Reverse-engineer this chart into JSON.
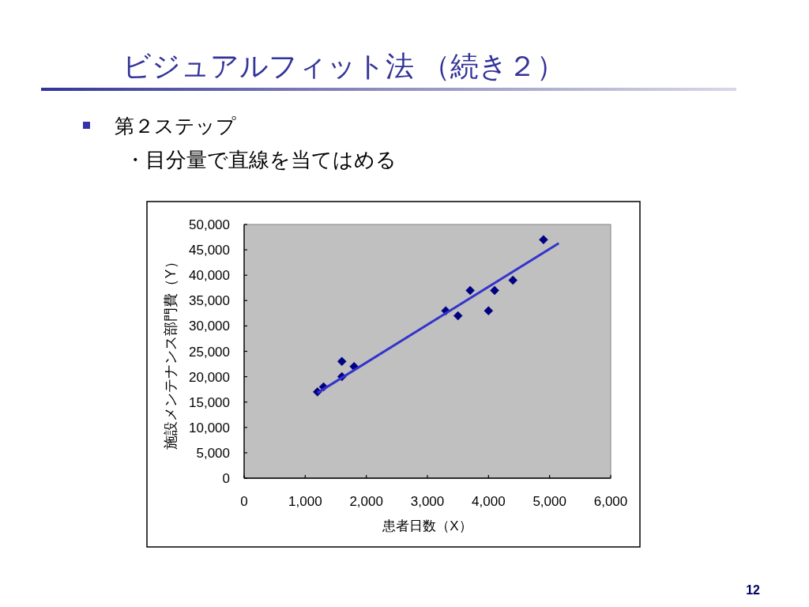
{
  "chart_data": {
    "type": "scatter",
    "title": "ビジュアルフィット法 （続き２）",
    "subtitle": "第２ステップ",
    "annotations": [
      "・目分量で直線を当てはめる",
      "12"
    ],
    "xlabel": "患者日数（X）",
    "ylabel": "施設メンテナンス部門費（Y）",
    "xlim": [
      0,
      6000
    ],
    "ylim": [
      0,
      50000
    ],
    "xticks": [
      0,
      {
        "value": 1000,
        "label": "1,000"
      },
      {
        "value": 2000,
        "label": "2,000"
      },
      {
        "value": 3000,
        "label": "3,000"
      },
      {
        "value": 4000,
        "label": "4,000"
      },
      {
        "value": 5000,
        "label": "5,000"
      },
      {
        "value": 6000,
        "label": "6,000"
      }
    ],
    "yticks": [
      0,
      {
        "value": 5000,
        "label": "5,000"
      },
      {
        "value": 10000,
        "label": "10,000"
      },
      {
        "value": 15000,
        "label": "15,000"
      },
      {
        "value": 20000,
        "label": "20,000"
      },
      {
        "value": 25000,
        "label": "25,000"
      },
      {
        "value": 30000,
        "label": "30,000"
      },
      {
        "value": 35000,
        "label": "35,000"
      },
      {
        "value": 40000,
        "label": "40,000"
      },
      {
        "value": 45000,
        "label": "45,000"
      },
      {
        "value": 50000,
        "label": "50,000"
      }
    ],
    "marker": "diamond",
    "series": [
      {
        "color": "#000080",
        "x": [
          1200,
          1300,
          1600,
          1600,
          1800,
          3300,
          3500,
          3700,
          4000,
          4100,
          4400,
          4900
        ],
        "values": [
          17000,
          18000,
          23000,
          20000,
          22000,
          33000,
          32000,
          37000,
          33000,
          37000,
          39000,
          47000
        ]
      },
      {
        "type": "line",
        "color": "#3333cc",
        "marker": "none",
        "x": [
          1200,
          5150
        ],
        "values": [
          16800,
          46300
        ]
      }
    ]
  }
}
